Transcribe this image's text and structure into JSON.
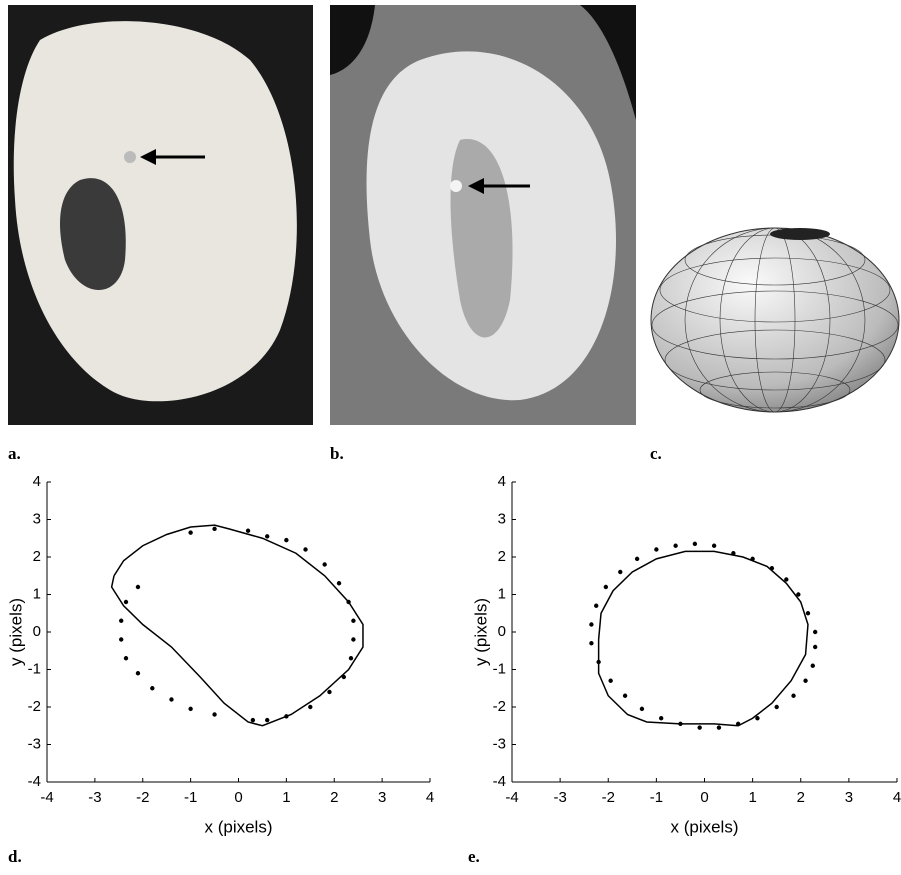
{
  "panel_labels": [
    "a.",
    "b.",
    "c."
  ],
  "chart_data": [
    {
      "type": "scatter",
      "panel_label": "d.",
      "x_label": "x (pixels)",
      "y_label": "y (pixels)",
      "xlim": [
        -4,
        4
      ],
      "ylim": [
        -4,
        4
      ],
      "xticks": [
        -4,
        -3,
        -2,
        -1,
        0,
        1,
        2,
        3,
        4
      ],
      "yticks": [
        -4,
        -3,
        -2,
        -1,
        0,
        1,
        2,
        3,
        4
      ],
      "series": [
        {
          "style": "line",
          "color": "#000",
          "x": [
            -2.6,
            -2.4,
            -2,
            -1.5,
            -1,
            -0.5,
            -0.2,
            0.5,
            1.2,
            1.8,
            2.3,
            2.6,
            2.6,
            2.3,
            1.7,
            1.1,
            0.5,
            0.2,
            -0.3,
            -0.8,
            -1.4,
            -2,
            -2.4,
            -2.65,
            -2.6
          ],
          "values": [
            1.5,
            1.9,
            2.3,
            2.6,
            2.8,
            2.85,
            2.75,
            2.5,
            2.1,
            1.5,
            0.8,
            0.2,
            -0.4,
            -1,
            -1.7,
            -2.2,
            -2.5,
            -2.4,
            -1.9,
            -1.2,
            -0.4,
            0.2,
            0.7,
            1.2,
            1.5
          ]
        },
        {
          "style": "markers",
          "color": "#000",
          "x": [
            -1,
            -0.5,
            0.2,
            0.6,
            1,
            1.4,
            1.8,
            2.1,
            2.3,
            2.4,
            2.4,
            2.35,
            2.2,
            1.9,
            1.5,
            1,
            0.6,
            0.3,
            -0.5,
            -1,
            -1.4,
            -1.8,
            -2.1,
            -2.35,
            -2.45,
            -2.45,
            -2.35,
            -2.1
          ],
          "values": [
            2.65,
            2.75,
            2.7,
            2.55,
            2.45,
            2.2,
            1.8,
            1.3,
            0.8,
            0.3,
            -0.2,
            -0.7,
            -1.2,
            -1.6,
            -2,
            -2.25,
            -2.35,
            -2.35,
            -2.2,
            -2.05,
            -1.8,
            -1.5,
            -1.1,
            -0.7,
            -0.2,
            0.3,
            0.8,
            1.2
          ]
        }
      ]
    },
    {
      "type": "scatter",
      "panel_label": "e.",
      "x_label": "x (pixels)",
      "y_label": "y (pixels)",
      "xlim": [
        -4,
        4
      ],
      "ylim": [
        -4,
        4
      ],
      "xticks": [
        -4,
        -3,
        -2,
        -1,
        0,
        1,
        2,
        3,
        4
      ],
      "yticks": [
        -4,
        -3,
        -2,
        -1,
        0,
        1,
        2,
        3,
        4
      ],
      "series": [
        {
          "style": "line",
          "color": "#000",
          "x": [
            -2.2,
            -2.15,
            -1.9,
            -1.5,
            -1,
            -0.4,
            0.2,
            0.8,
            1.3,
            1.7,
            2,
            2.15,
            2.1,
            1.8,
            1.4,
            1,
            0.7,
            0.2,
            -0.5,
            -1.2,
            -1.6,
            -2,
            -2.2,
            -2.2
          ],
          "values": [
            -0.2,
            0.5,
            1.1,
            1.6,
            1.95,
            2.15,
            2.15,
            2,
            1.75,
            1.3,
            0.8,
            0.2,
            -0.6,
            -1.3,
            -1.9,
            -2.3,
            -2.5,
            -2.45,
            -2.45,
            -2.4,
            -2.2,
            -1.7,
            -1.1,
            -0.2
          ]
        },
        {
          "style": "markers",
          "color": "#000",
          "x": [
            -2.35,
            -2.35,
            -2.25,
            -2.05,
            -1.75,
            -1.4,
            -1,
            -0.6,
            -0.2,
            0.2,
            0.6,
            1,
            1.4,
            1.7,
            1.95,
            2.15,
            2.3,
            2.3,
            2.25,
            2.1,
            1.85,
            1.5,
            1.1,
            0.7,
            0.3,
            -0.1,
            -0.5,
            -0.9,
            -1.3,
            -1.65,
            -1.95,
            -2.2
          ],
          "values": [
            -0.3,
            0.2,
            0.7,
            1.2,
            1.6,
            1.95,
            2.2,
            2.3,
            2.35,
            2.3,
            2.1,
            1.95,
            1.7,
            1.4,
            1,
            0.5,
            0,
            -0.4,
            -0.9,
            -1.3,
            -1.7,
            -2,
            -2.3,
            -2.45,
            -2.55,
            -2.55,
            -2.45,
            -2.3,
            -2.05,
            -1.7,
            -1.3,
            -0.8
          ]
        }
      ]
    }
  ]
}
